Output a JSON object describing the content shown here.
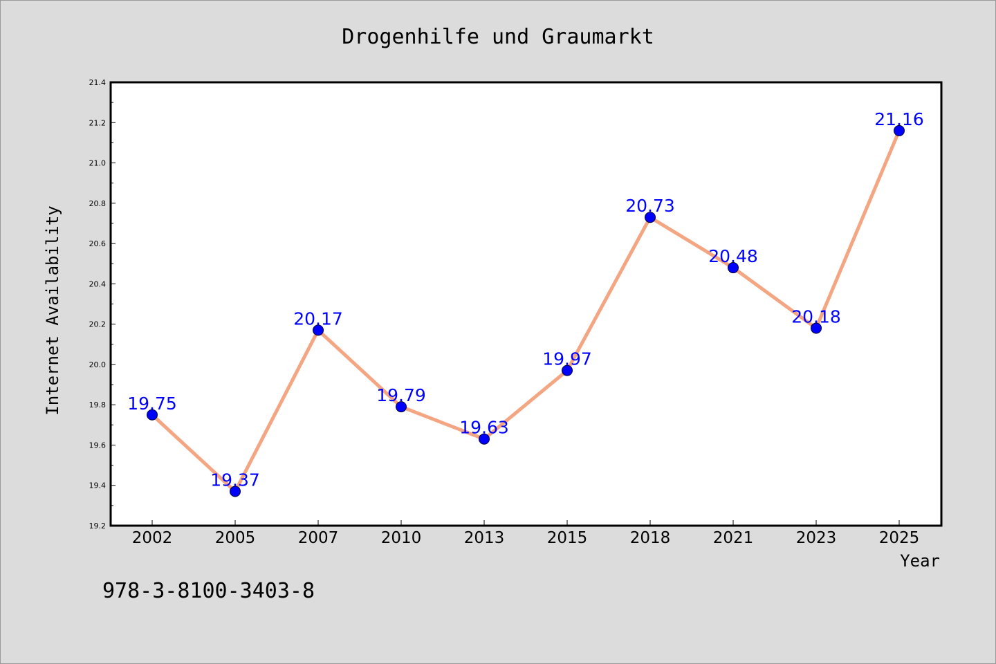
{
  "chart_data": {
    "type": "line",
    "title": "Drogenhilfe und Graumarkt",
    "xlabel": "Year",
    "ylabel": "Internet Availability",
    "categories": [
      "2002",
      "2005",
      "2007",
      "2010",
      "2013",
      "2015",
      "2018",
      "2021",
      "2023",
      "2025"
    ],
    "series": [
      {
        "values": [
          19.75,
          19.37,
          20.17,
          19.79,
          19.63,
          19.97,
          20.73,
          20.48,
          20.18,
          21.16
        ],
        "line_color": "#f4a582",
        "marker_color": "#0000ff",
        "label_color": "#0000ff"
      }
    ],
    "ylim": [
      19.2,
      21.4
    ],
    "yticks": [
      "19.2",
      "19.4",
      "19.6",
      "19.8",
      "20.0",
      "20.2",
      "20.4",
      "20.6",
      "20.8",
      "21.0",
      "21.2",
      "21.4"
    ],
    "grid": false,
    "legend": "none"
  },
  "footer": {
    "text": "978-3-8100-3403-8"
  },
  "colors": {
    "background": "#dcdcdc",
    "plot_area": "#ffffff",
    "frame": "#000000"
  }
}
